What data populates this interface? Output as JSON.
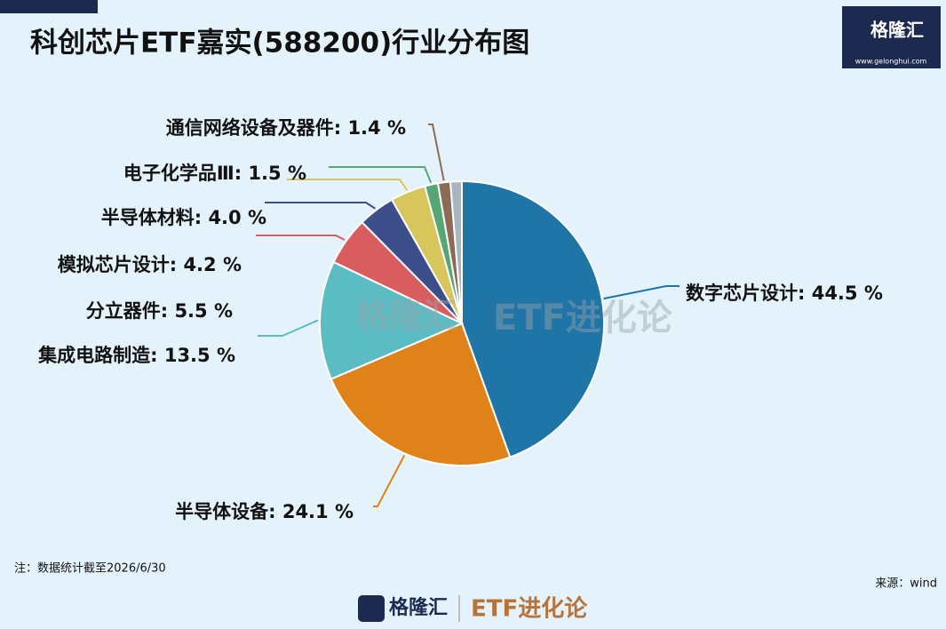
{
  "chart_data": {
    "type": "pie",
    "title": "科创芯片ETF嘉实(588200)行业分布图",
    "values": [
      44.5,
      24.1,
      13.5,
      5.5,
      4.2,
      4.0,
      1.5,
      1.4,
      1.3
    ],
    "value_labels": [
      "数字芯片设计: 44.5 %",
      "半导体设备: 24.1 %",
      "集成电路制造: 13.5 %",
      "分立器件: 5.5 %",
      "模拟芯片设计: 4.2 %",
      "半导体材料: 4.0 %",
      "电子化学品Ⅲ: 1.5 %",
      "通信网络设备及器件: 1.4 %",
      null
    ],
    "colors": [
      "#1f75a6",
      "#e0821a",
      "#5cbcc3",
      "#d95d5e",
      "#3d4f8b",
      "#d6c65c",
      "#56a774",
      "#8b6b55",
      "#a9b5c1"
    ],
    "note": "注：数据统计截至2026/6/30",
    "source": "来源：wind"
  },
  "branding": {
    "logo": "格隆汇",
    "url": "www.gelonghui.com",
    "column": "ETF进化论"
  }
}
